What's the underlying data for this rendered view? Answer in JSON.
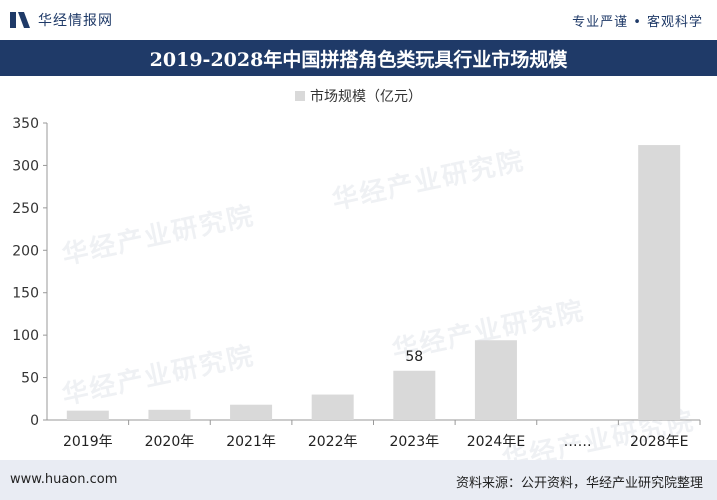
{
  "header": {
    "logo_text": "华经情报网",
    "tagline": "专业严谨 • 客观科学"
  },
  "title": "2019-2028年中国拼搭角色类玩具行业市场规模",
  "watermark_text": "华经产业研究院",
  "footer": {
    "website": "www.huaon.com",
    "source": "资料来源：公开资料，华经产业研究院整理"
  },
  "colors": {
    "brand": "#1f3a68",
    "bar": "#d9d9d9",
    "footer_bg": "#e9ecf3"
  },
  "chart_data": {
    "type": "bar",
    "categories": [
      "2019年",
      "2020年",
      "2021年",
      "2022年",
      "2023年",
      "2024年E",
      "……",
      "2028年E"
    ],
    "series": [
      {
        "name": "市场规模（亿元）",
        "values": [
          11,
          12,
          18,
          30,
          58,
          94,
          null,
          324
        ]
      }
    ],
    "data_labels": [
      null,
      null,
      null,
      null,
      "58",
      null,
      null,
      null
    ],
    "yticks": [
      0,
      50,
      100,
      150,
      200,
      250,
      300,
      350
    ],
    "ylim": [
      0,
      350
    ],
    "grid": false,
    "legend_position": "top-center"
  }
}
